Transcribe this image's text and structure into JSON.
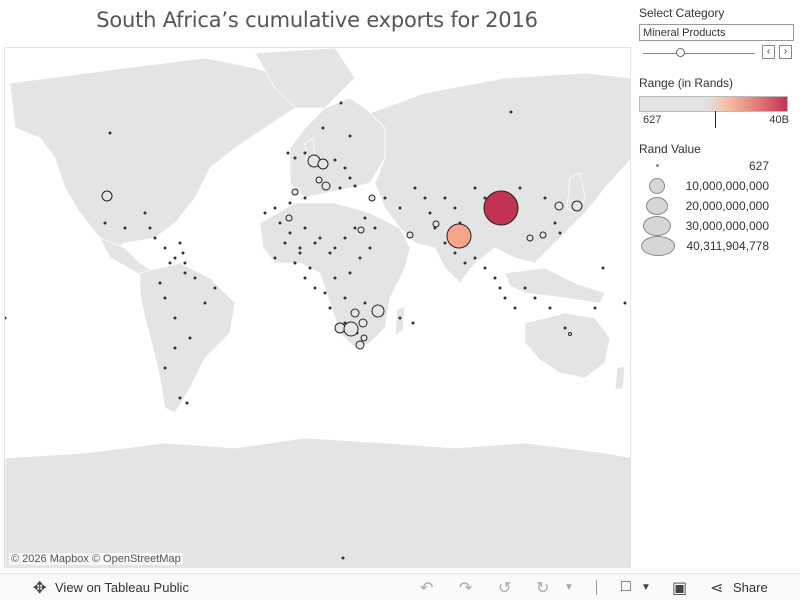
{
  "title": "South Africa’s cumulative exports for 2016",
  "attribution": "© 2026 Mapbox © OpenStreetMap",
  "filter": {
    "label": "Select Category",
    "selected": "Mineral Products",
    "prev_icon": "chevron-left-icon",
    "next_icon": "chevron-right-icon"
  },
  "range_legend": {
    "label": "Range (in Rands)",
    "min_label": "627",
    "max_label": "40B",
    "colors": [
      "#e2e2e2",
      "#f7b79c",
      "#e27b79",
      "#c23353"
    ]
  },
  "size_legend": {
    "label": "Rand Value",
    "items": [
      {
        "label": "627",
        "value": 627
      },
      {
        "label": "10,000,000,000",
        "value": 10000000000
      },
      {
        "label": "20,000,000,000",
        "value": 20000000000
      },
      {
        "label": "30,000,000,000",
        "value": 30000000000
      },
      {
        "label": "40,311,904,778",
        "value": 40311904778
      }
    ]
  },
  "toolbar": {
    "view_label": "View on Tableau Public",
    "share_label": "Share",
    "view_icon": "tableau-logo-icon",
    "undo_icon": "undo-icon",
    "redo_icon": "redo-icon",
    "revert_icon": "revert-icon",
    "refresh_icon": "refresh-icon",
    "download_icon": "download-icon",
    "fullscreen_icon": "fullscreen-icon",
    "share_icon": "share-icon"
  },
  "highlighted_markers": [
    {
      "country": "China",
      "color": "#c23353"
    },
    {
      "country": "India",
      "color": "#f7a48a"
    }
  ]
}
